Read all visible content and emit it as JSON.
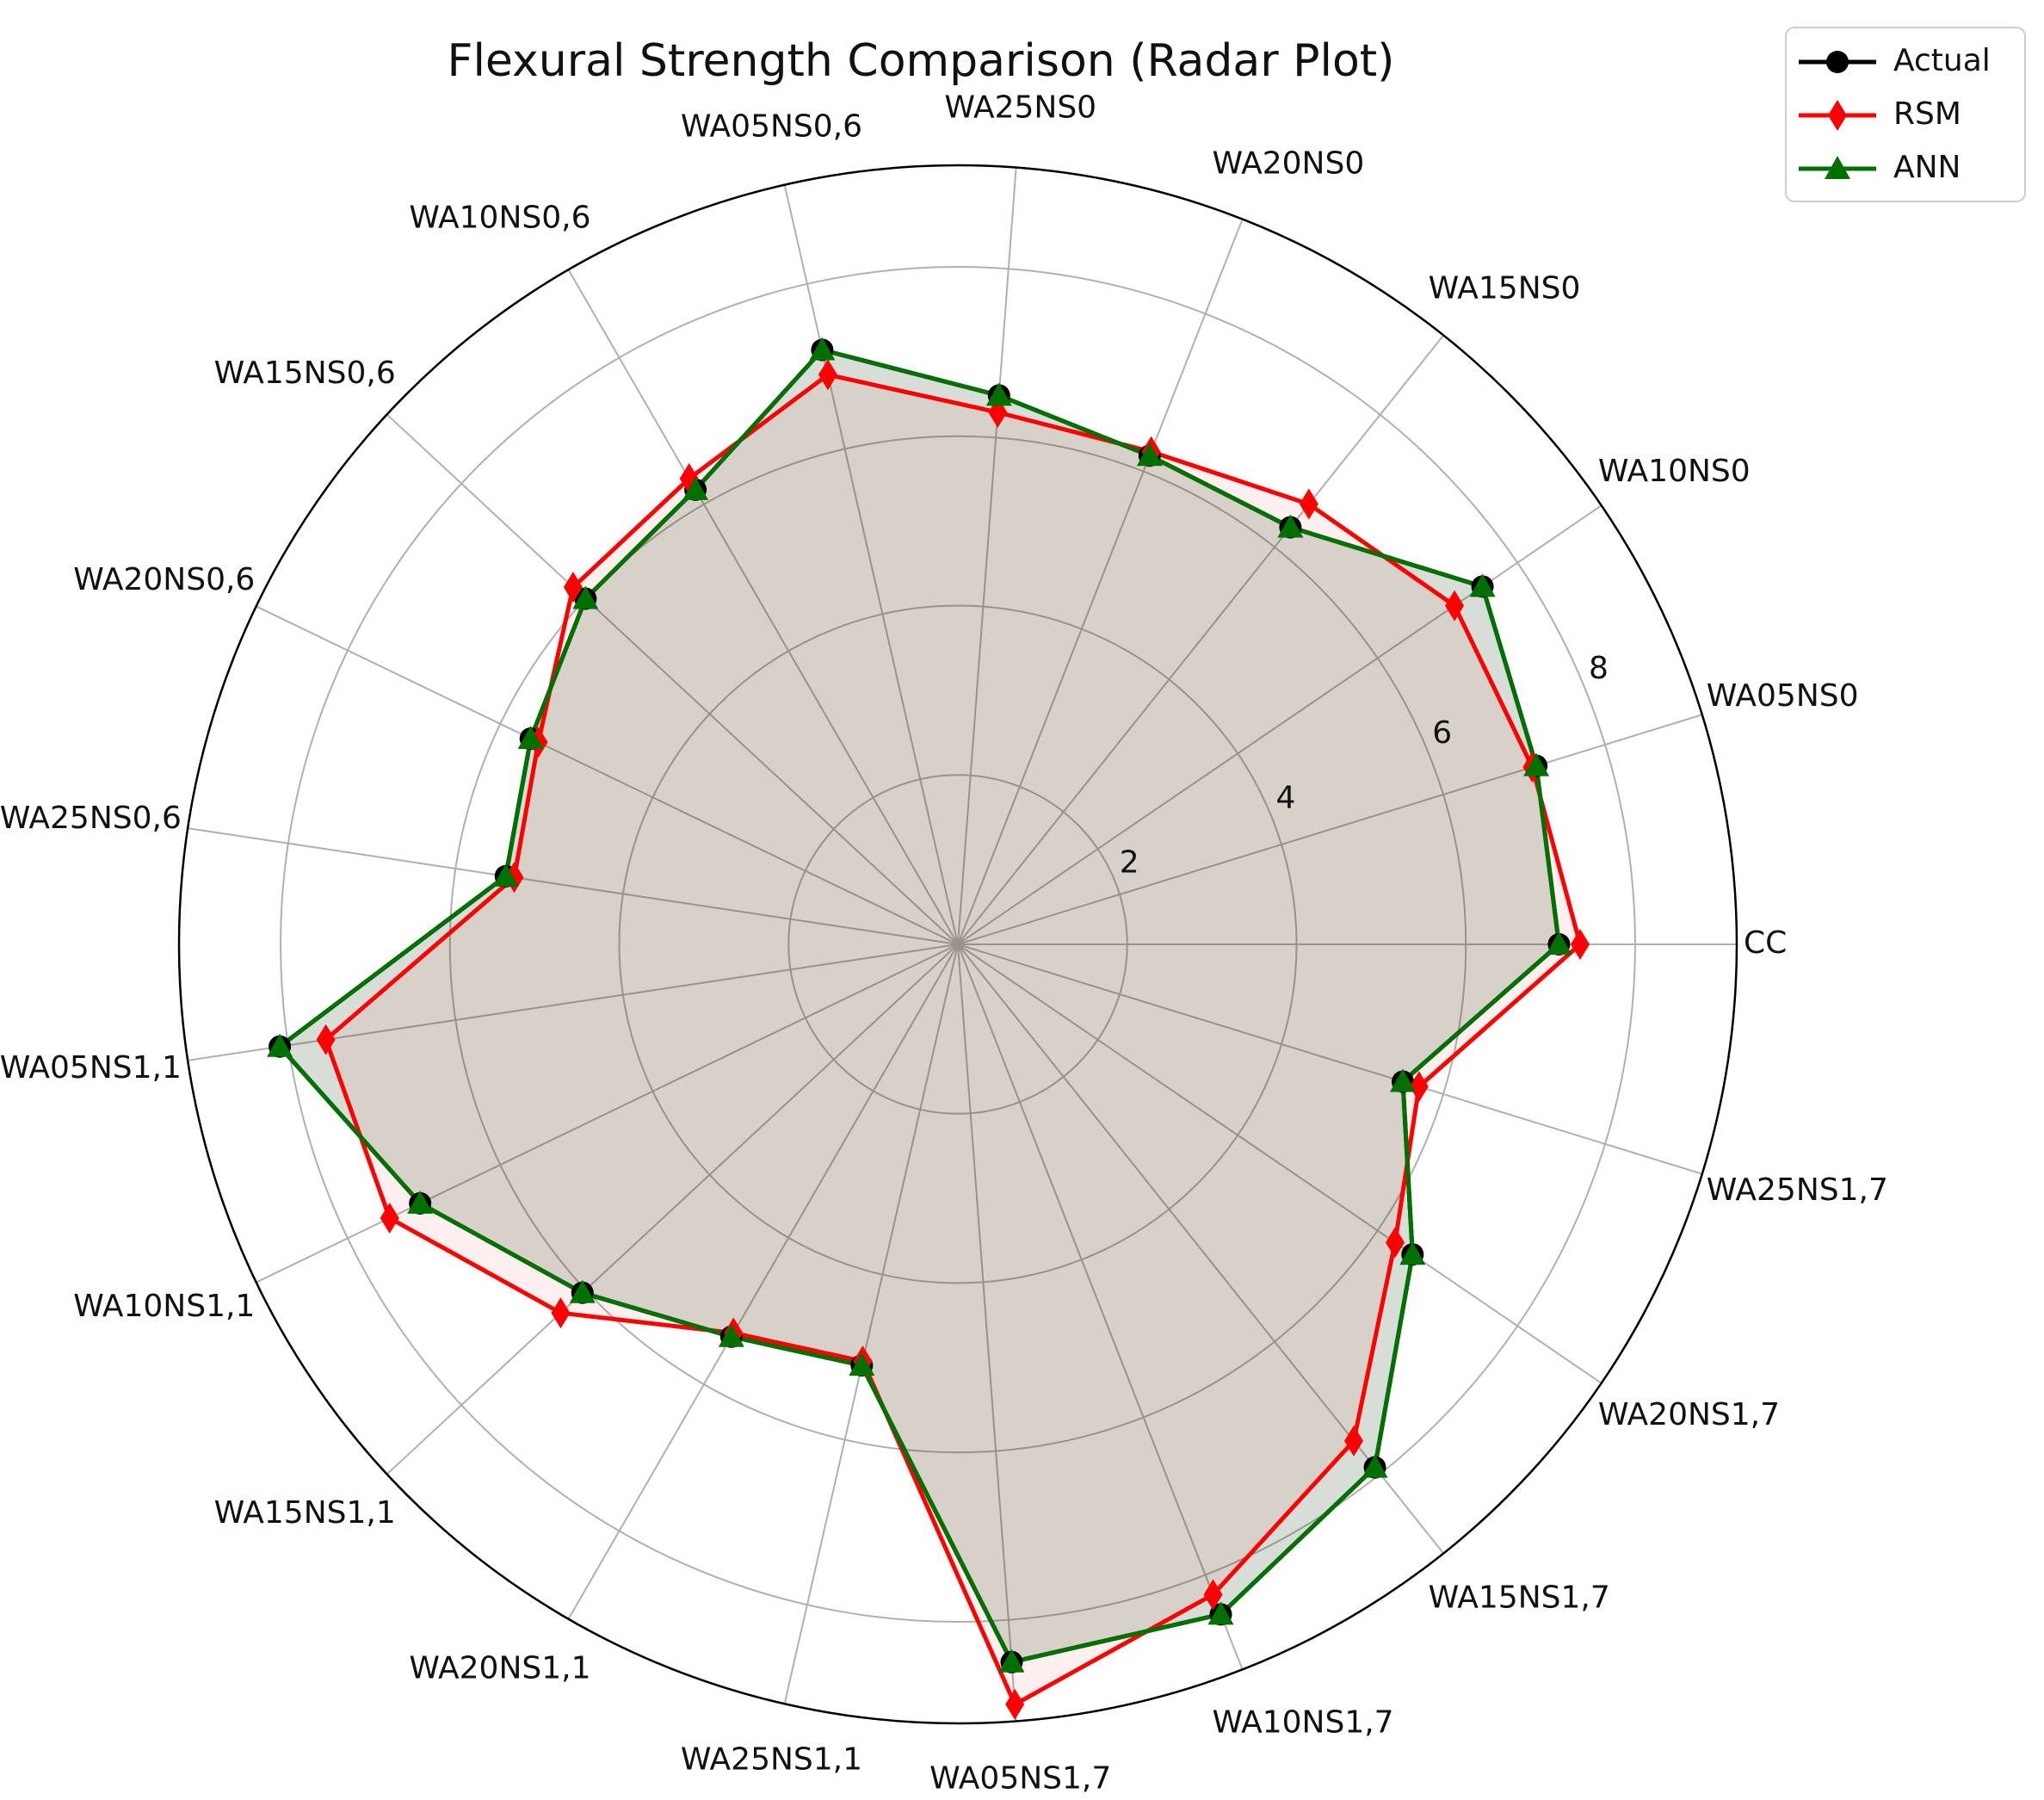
{
  "chart_data": {
    "type": "radar",
    "title": "Flexural Strength Comparison (Radar Plot)",
    "categories": [
      "CC",
      "WA05NS0",
      "WA10NS0",
      "WA15NS0",
      "WA20NS0",
      "WA25NS0",
      "WA05NS0,6",
      "WA10NS0,6",
      "WA15NS0,6",
      "WA20NS0,6",
      "WA25NS0,6",
      "WA05NS1,1",
      "WA10NS1,1",
      "WA15NS1,1",
      "WA20NS1,1",
      "WA25NS1,1",
      "WA05NS1,7",
      "WA10NS1,7",
      "WA15NS1,7",
      "WA20NS1,7",
      "WA25NS1,7"
    ],
    "radial_ticks": [
      "2",
      "4",
      "6",
      "8"
    ],
    "rlim": [
      0,
      9.2
    ],
    "grid": true,
    "legend_position": "top-right",
    "series": [
      {
        "name": "Actual",
        "color": "#000000",
        "marker": "circle",
        "values": [
          7.1,
          7.15,
          7.5,
          6.3,
          6.2,
          6.5,
          7.2,
          6.2,
          6.0,
          5.6,
          5.4,
          8.1,
          7.05,
          6.05,
          5.35,
          5.1,
          8.5,
          8.5,
          7.9,
          6.5,
          5.5
        ]
      },
      {
        "name": "RSM",
        "color": "#ff0000",
        "marker": "diamond",
        "values": [
          7.35,
          7.1,
          7.1,
          6.65,
          6.25,
          6.3,
          6.9,
          6.35,
          6.2,
          5.5,
          5.3,
          7.55,
          7.45,
          6.4,
          5.3,
          5.05,
          9.0,
          8.25,
          7.5,
          6.25,
          5.7
        ]
      },
      {
        "name": "ANN",
        "color": "#007000",
        "marker": "triangle",
        "values": [
          7.1,
          7.15,
          7.5,
          6.3,
          6.2,
          6.5,
          7.2,
          6.2,
          6.0,
          5.6,
          5.4,
          8.1,
          7.05,
          6.05,
          5.35,
          5.1,
          8.5,
          8.5,
          7.9,
          6.5,
          5.5
        ]
      }
    ]
  }
}
